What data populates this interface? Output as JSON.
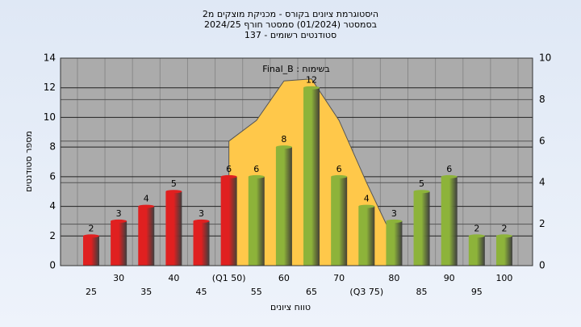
{
  "chart_data": {
    "type": "bar",
    "title": "היסטוגרמת ציונים בקורס - מכניקת מוצקים מ2",
    "subtitle": "בסמסטר  (01/2024)  סמסטר חורף 2024/25",
    "subtitle2": "סטודנטים רשומים - 137",
    "annotation": "Final_B : בשימוח",
    "x_label": "טווח ציונים",
    "y_label": "מספר סטודנטים",
    "categories": [
      "25",
      "30",
      "35",
      "40",
      "45",
      "(Q1 50)",
      "55",
      "60",
      "65",
      "70",
      "(Q3 75)",
      "80",
      "85",
      "90",
      "95",
      "100"
    ],
    "values": [
      2,
      3,
      4,
      5,
      3,
      6,
      6,
      8,
      12,
      6,
      4,
      3,
      5,
      6,
      2,
      2
    ],
    "colors": [
      "#e02020",
      "#e02020",
      "#e02020",
      "#e02020",
      "#e02020",
      "#e02020",
      "#8db33a",
      "#8db33a",
      "#8db33a",
      "#8db33a",
      "#8db33a",
      "#8db33a",
      "#8db33a",
      "#8db33a",
      "#8db33a",
      "#8db33a"
    ],
    "area": {
      "color": "#ffc84a",
      "axis": "y2",
      "values": [
        null,
        null,
        null,
        null,
        null,
        6,
        7,
        8.9,
        9,
        7,
        4,
        1.2,
        null,
        null,
        null,
        null
      ]
    },
    "ylim": [
      0,
      14
    ],
    "yticks": [
      0,
      2,
      4,
      6,
      8,
      10,
      12,
      14
    ],
    "y2lim": [
      0,
      10
    ],
    "y2ticks": [
      0,
      2,
      4,
      6,
      8,
      10
    ],
    "grid": true
  }
}
